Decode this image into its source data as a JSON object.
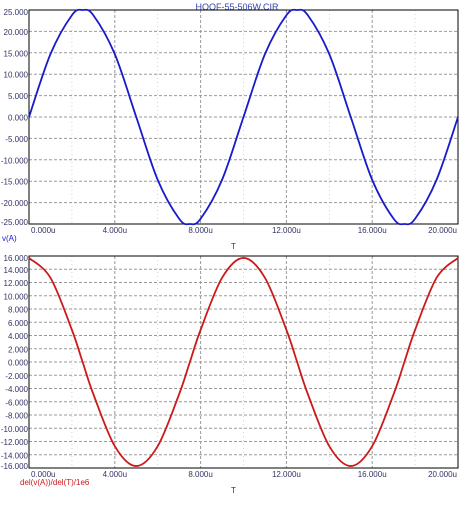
{
  "title": "HQQF-55-506W.CIR",
  "colors": {
    "background": "#ffffff",
    "frame": "#000000",
    "grid": "#9a9a9a",
    "axis_text": "#333366",
    "title_text": "#3344aa",
    "series_top": "#1a1acc",
    "series_bottom": "#cc1a1a"
  },
  "chart_data": [
    {
      "type": "line",
      "xlabel": "T",
      "ylabel": "",
      "xlim": [
        0,
        20
      ],
      "ylim": [
        -25,
        25
      ],
      "x_unit": "u",
      "x_ticks": [
        "0.000u",
        "4.000u",
        "8.000u",
        "12.000u",
        "16.000u",
        "20.000u"
      ],
      "y_ticks": [
        "25.000",
        "20.000",
        "15.000",
        "10.000",
        "5.000",
        "0.000",
        "-5.000",
        "-10.000",
        "-15.000",
        "-20.000",
        "-25.000"
      ],
      "grid": true,
      "series": [
        {
          "name": "v(A)",
          "color": "#1a1acc",
          "x": [
            0,
            1,
            2,
            2.5,
            3,
            4,
            5,
            6,
            7,
            7.5,
            8,
            9,
            10,
            11,
            12,
            12.5,
            13,
            14,
            15,
            16,
            17,
            17.5,
            18,
            19,
            20
          ],
          "y": [
            0,
            14.69,
            23.78,
            25,
            23.78,
            14.69,
            0,
            -14.69,
            -23.78,
            -25,
            -23.78,
            -14.69,
            0,
            14.69,
            23.78,
            25,
            23.78,
            14.69,
            0,
            -14.69,
            -23.78,
            -25,
            -23.78,
            -14.69,
            0
          ]
        }
      ]
    },
    {
      "type": "line",
      "xlabel": "T",
      "ylabel": "",
      "xlim": [
        0,
        20
      ],
      "ylim": [
        -16,
        16
      ],
      "x_unit": "u",
      "x_ticks": [
        "0.000u",
        "4.000u",
        "8.000u",
        "12.000u",
        "16.000u",
        "20.000u"
      ],
      "y_ticks": [
        "16.000",
        "14.000",
        "12.000",
        "10.000",
        "8.000",
        "6.000",
        "4.000",
        "2.000",
        "0.000",
        "-2.000",
        "-4.000",
        "-6.000",
        "-8.000",
        "-10.000",
        "-12.000",
        "-14.000",
        "-16.000"
      ],
      "grid": true,
      "series": [
        {
          "name": "del(v(A))/del(T)/1e6",
          "color": "#cc1a1a",
          "x": [
            0,
            1,
            2,
            2.5,
            3,
            4,
            5,
            6,
            7,
            7.5,
            8,
            9,
            10,
            11,
            12,
            12.5,
            13,
            14,
            15,
            16,
            17,
            17.5,
            18,
            19,
            20
          ],
          "y": [
            15.71,
            12.71,
            4.85,
            0,
            -4.85,
            -12.71,
            -15.71,
            -12.71,
            -4.85,
            0,
            4.85,
            12.71,
            15.71,
            12.71,
            4.85,
            0,
            -4.85,
            -12.71,
            -15.71,
            -12.71,
            -4.85,
            0,
            4.85,
            12.71,
            15.71
          ]
        }
      ]
    }
  ]
}
